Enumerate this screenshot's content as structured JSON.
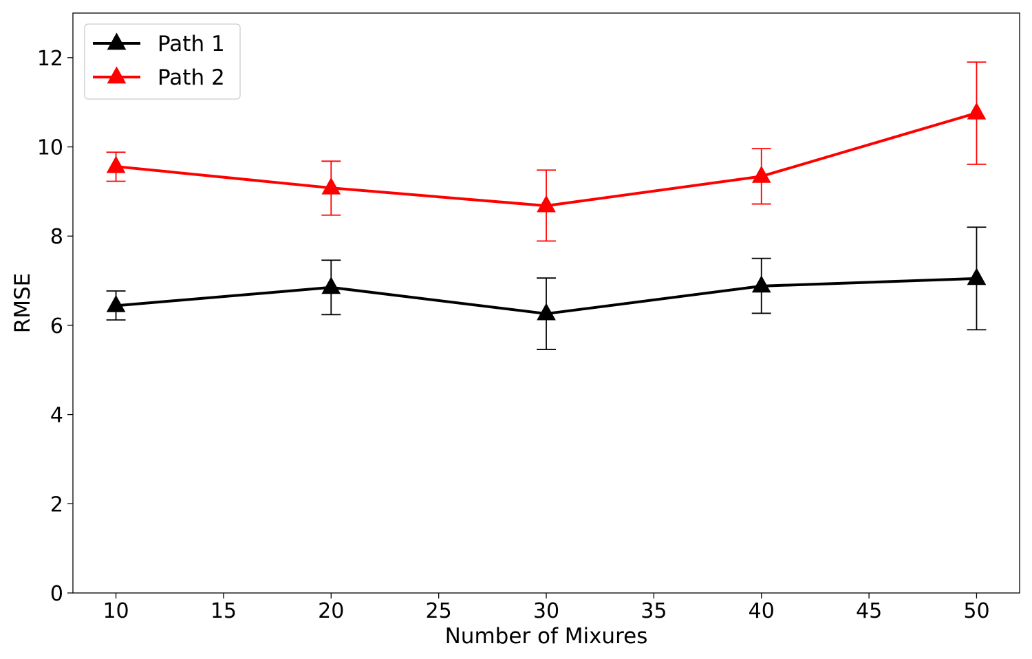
{
  "chart_data": {
    "type": "line",
    "title": "",
    "xlabel": "Number of Mixures",
    "ylabel": "RMSE",
    "xlim": [
      8,
      52
    ],
    "ylim": [
      0,
      13
    ],
    "xticks": [
      10,
      15,
      20,
      25,
      30,
      35,
      40,
      45,
      50
    ],
    "yticks": [
      0,
      2,
      4,
      6,
      8,
      10,
      12
    ],
    "grid": false,
    "legend_position": "top-left",
    "x": [
      10,
      20,
      30,
      40,
      50
    ],
    "series": [
      {
        "name": "Path 1",
        "color": "#000000",
        "marker": "triangle-up",
        "values": [
          6.44,
          6.85,
          6.26,
          6.88,
          7.05
        ],
        "error_low": [
          6.12,
          6.24,
          5.46,
          6.27,
          5.9
        ],
        "error_high": [
          6.77,
          7.46,
          7.06,
          7.5,
          8.2
        ]
      },
      {
        "name": "Path 2",
        "color": "#ff0000",
        "marker": "triangle-up",
        "values": [
          9.56,
          9.08,
          8.68,
          9.34,
          10.76
        ],
        "error_low": [
          9.23,
          8.47,
          7.89,
          8.72,
          9.61
        ],
        "error_high": [
          9.88,
          9.68,
          9.48,
          9.96,
          11.9
        ]
      }
    ]
  }
}
